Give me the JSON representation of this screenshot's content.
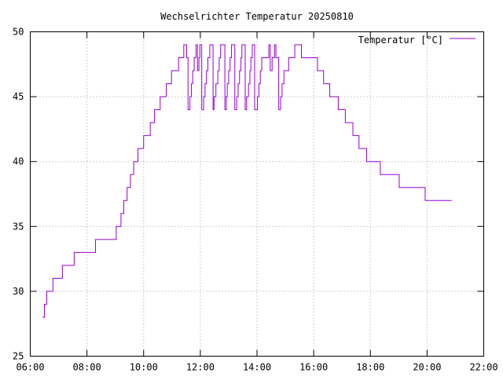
{
  "chart_data": {
    "type": "line",
    "title": "Wechselrichter Temperatur 20250810",
    "xlabel": "",
    "ylabel": "",
    "x_ticks": [
      "06:00",
      "08:00",
      "10:00",
      "12:00",
      "14:00",
      "16:00",
      "18:00",
      "20:00",
      "22:00"
    ],
    "xlim": [
      "06:00",
      "22:00"
    ],
    "ylim": [
      25,
      50
    ],
    "y_ticks": [
      25,
      30,
      35,
      40,
      45,
      50
    ],
    "grid": true,
    "legend_position": "top-right",
    "series": [
      {
        "name": "Temperatur [°C]",
        "color": "#9400d3",
        "step": true,
        "points": [
          [
            "06:26",
            28
          ],
          [
            "06:30",
            29
          ],
          [
            "06:35",
            30
          ],
          [
            "06:48",
            31
          ],
          [
            "07:08",
            32
          ],
          [
            "07:33",
            33
          ],
          [
            "08:18",
            34
          ],
          [
            "09:02",
            35
          ],
          [
            "09:12",
            36
          ],
          [
            "09:18",
            37
          ],
          [
            "09:25",
            38
          ],
          [
            "09:32",
            39
          ],
          [
            "09:39",
            40
          ],
          [
            "09:48",
            41
          ],
          [
            "10:00",
            42
          ],
          [
            "10:14",
            43
          ],
          [
            "10:23",
            44
          ],
          [
            "10:35",
            45
          ],
          [
            "10:48",
            46
          ],
          [
            "10:59",
            47
          ],
          [
            "11:14",
            48
          ],
          [
            "11:25",
            49
          ],
          [
            "11:31",
            48
          ],
          [
            "11:34",
            44
          ],
          [
            "11:38",
            45
          ],
          [
            "11:41",
            46
          ],
          [
            "11:44",
            47
          ],
          [
            "11:47",
            48
          ],
          [
            "11:51",
            49
          ],
          [
            "11:54",
            47
          ],
          [
            "11:57",
            48
          ],
          [
            "11:59",
            49
          ],
          [
            "12:03",
            44
          ],
          [
            "12:07",
            45
          ],
          [
            "12:10",
            46
          ],
          [
            "12:13",
            47
          ],
          [
            "12:16",
            48
          ],
          [
            "12:20",
            49
          ],
          [
            "12:27",
            44
          ],
          [
            "12:29",
            45
          ],
          [
            "12:33",
            46
          ],
          [
            "12:37",
            47
          ],
          [
            "12:40",
            48
          ],
          [
            "12:43",
            49
          ],
          [
            "12:52",
            44
          ],
          [
            "12:55",
            45
          ],
          [
            "12:57",
            46
          ],
          [
            "13:00",
            47
          ],
          [
            "13:03",
            48
          ],
          [
            "13:06",
            49
          ],
          [
            "13:13",
            44
          ],
          [
            "13:17",
            45
          ],
          [
            "13:20",
            46
          ],
          [
            "13:23",
            47
          ],
          [
            "13:26",
            48
          ],
          [
            "13:28",
            49
          ],
          [
            "13:35",
            44
          ],
          [
            "13:38",
            45
          ],
          [
            "13:42",
            46
          ],
          [
            "13:45",
            47
          ],
          [
            "13:47",
            48
          ],
          [
            "13:50",
            49
          ],
          [
            "13:55",
            44
          ],
          [
            "14:01",
            45
          ],
          [
            "14:04",
            46
          ],
          [
            "14:07",
            47
          ],
          [
            "14:10",
            48
          ],
          [
            "14:25",
            49
          ],
          [
            "14:28",
            47
          ],
          [
            "14:32",
            48
          ],
          [
            "14:37",
            49
          ],
          [
            "14:40",
            48
          ],
          [
            "14:46",
            44
          ],
          [
            "14:50",
            45
          ],
          [
            "14:53",
            46
          ],
          [
            "14:57",
            47
          ],
          [
            "15:07",
            48
          ],
          [
            "15:20",
            49
          ],
          [
            "15:34",
            48
          ],
          [
            "16:08",
            47
          ],
          [
            "16:21",
            46
          ],
          [
            "16:34",
            45
          ],
          [
            "16:52",
            44
          ],
          [
            "17:07",
            43
          ],
          [
            "17:23",
            42
          ],
          [
            "17:36",
            41
          ],
          [
            "17:52",
            40
          ],
          [
            "18:21",
            39
          ],
          [
            "19:01",
            38
          ],
          [
            "19:56",
            37
          ],
          [
            "20:52",
            37
          ]
        ]
      }
    ]
  }
}
